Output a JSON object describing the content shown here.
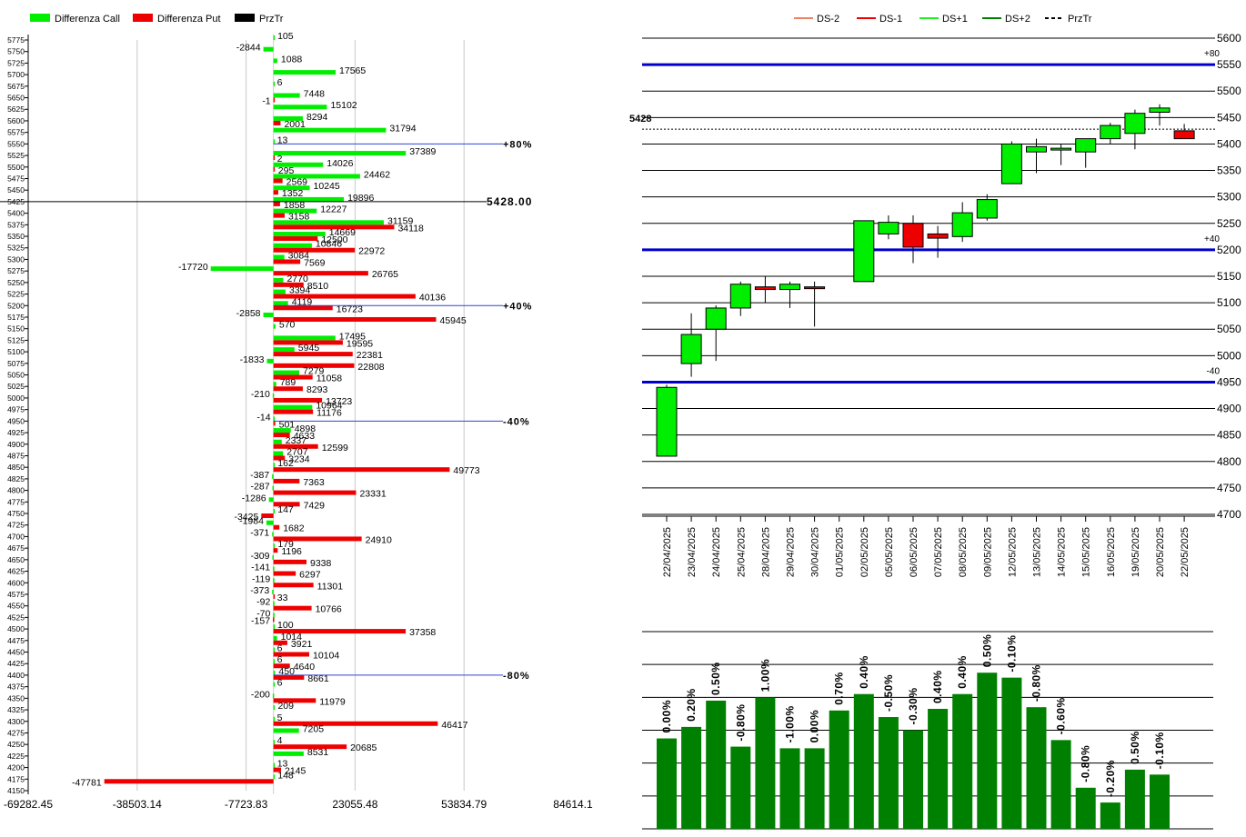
{
  "chart_data": [
    {
      "type": "bar",
      "orientation": "horizontal",
      "legend": [
        {
          "name": "Differenza Call",
          "color": "#00ee00"
        },
        {
          "name": "Differenza Put",
          "color": "#ee0000"
        },
        {
          "name": "PrzTr",
          "color": "#000000"
        }
      ],
      "xlim": [
        -69282.45,
        84614.1
      ],
      "xticks": [
        "-69282.45",
        "-38503.14",
        "-7723.83",
        "23055.48",
        "53834.79",
        "84614.1"
      ],
      "xtick_values": [
        -69282.45,
        -38503.14,
        -7723.83,
        23055.48,
        53834.79,
        84614.1
      ],
      "strikes": [
        5775,
        5750,
        5725,
        5700,
        5675,
        5650,
        5625,
        5600,
        5575,
        5550,
        5525,
        5500,
        5475,
        5450,
        5425,
        5400,
        5375,
        5350,
        5325,
        5300,
        5275,
        5250,
        5225,
        5200,
        5175,
        5150,
        5125,
        5100,
        5075,
        5050,
        5025,
        5000,
        4975,
        4950,
        4925,
        4900,
        4875,
        4850,
        4825,
        4800,
        4775,
        4750,
        4725,
        4700,
        4675,
        4650,
        4625,
        4600,
        4575,
        4550,
        4525,
        4500,
        4475,
        4450,
        4425,
        4400,
        4375,
        4350,
        4325,
        4300,
        4275,
        4250,
        4225,
        4200,
        4175,
        4150
      ],
      "call": [
        105,
        -2844,
        1088,
        17565,
        6,
        7448,
        15102,
        8294,
        31794,
        13,
        37389,
        14026,
        24462,
        10245,
        19896,
        12227,
        31159,
        14669,
        10846,
        3084,
        -17720,
        2770,
        3394,
        4119,
        -2858,
        570,
        17495,
        5945,
        -1833,
        7279,
        789,
        -210,
        10964,
        -14,
        4898,
        2337,
        2707,
        162,
        -387,
        -287,
        -1286,
        147,
        -1984,
        -371,
        179,
        -309,
        -141,
        -119,
        -373,
        -92,
        -70,
        100,
        1014,
        6,
        6,
        450,
        6,
        -200,
        209,
        5,
        7205,
        4,
        8531,
        13,
        148,
        0
      ],
      "put": [
        0,
        0,
        0,
        0,
        0,
        -1,
        0,
        2001,
        0,
        0,
        2,
        295,
        2569,
        1352,
        1858,
        3158,
        34118,
        12500,
        22972,
        7569,
        26765,
        8510,
        40136,
        16723,
        45945,
        0,
        19595,
        22381,
        22808,
        11058,
        8293,
        13723,
        11176,
        501,
        4633,
        12599,
        3234,
        49773,
        7363,
        23331,
        7429,
        -3425,
        1682,
        24910,
        1196,
        9338,
        6297,
        11301,
        33,
        10766,
        -157,
        37358,
        3921,
        10104,
        4640,
        8661,
        0,
        11979,
        0,
        46417,
        0,
        20685,
        0,
        2145,
        -47781,
        0
      ],
      "price_label": "5428.00",
      "price_strike": 5425,
      "markers": [
        {
          "label": "+80%",
          "strike": 5550
        },
        {
          "label": "+40%",
          "strike": 5200
        },
        {
          "label": "-40%",
          "strike": 4950
        },
        {
          "label": "-80%",
          "strike": 4400
        }
      ]
    },
    {
      "type": "candlestick",
      "legend": [
        {
          "name": "DS-2",
          "color": "#f08060"
        },
        {
          "name": "DS-1",
          "color": "#ee0000"
        },
        {
          "name": "DS+1",
          "color": "#22ee22"
        },
        {
          "name": "DS+2",
          "color": "#008000"
        },
        {
          "name": "PrzTr",
          "color": "#000000",
          "dashed": true
        }
      ],
      "ylim": [
        4700,
        5600
      ],
      "yticks": [
        4700,
        4750,
        4800,
        4850,
        4900,
        4950,
        5000,
        5050,
        5100,
        5150,
        5200,
        5250,
        5300,
        5350,
        5400,
        5450,
        5500,
        5550,
        5600
      ],
      "dates": [
        "22/04/2025",
        "23/04/2025",
        "24/04/2025",
        "25/04/2025",
        "28/04/2025",
        "29/04/2025",
        "30/04/2025",
        "01/05/2025",
        "02/05/2025",
        "05/05/2025",
        "06/05/2025",
        "07/05/2025",
        "08/05/2025",
        "09/05/2025",
        "12/05/2025",
        "13/05/2025",
        "14/05/2025",
        "15/05/2025",
        "16/05/2025",
        "19/05/2025",
        "20/05/2025",
        "22/05/2025"
      ],
      "ohlc": [
        [
          4810,
          4945,
          4810,
          4940
        ],
        [
          4985,
          5080,
          4960,
          5040
        ],
        [
          5050,
          5095,
          4990,
          5090
        ],
        [
          5090,
          5140,
          5075,
          5135
        ],
        [
          5130,
          5150,
          5100,
          5125
        ],
        [
          5125,
          5140,
          5090,
          5135
        ],
        [
          5130,
          5140,
          5055,
          5128
        ],
        null,
        [
          5140,
          5255,
          5140,
          5255
        ],
        [
          5230,
          5265,
          5220,
          5252
        ],
        [
          5250,
          5265,
          5175,
          5205
        ],
        [
          5230,
          5245,
          5185,
          5222
        ],
        [
          5225,
          5290,
          5215,
          5270
        ],
        [
          5260,
          5305,
          5255,
          5295
        ],
        [
          5325,
          5405,
          5325,
          5400
        ],
        [
          5385,
          5410,
          5345,
          5395
        ],
        [
          5390,
          5400,
          5360,
          5392
        ],
        [
          5385,
          5410,
          5355,
          5410
        ],
        [
          5410,
          5440,
          5400,
          5435
        ],
        [
          5420,
          5465,
          5390,
          5458
        ],
        [
          5460,
          5475,
          5435,
          5468
        ],
        [
          5425,
          5438,
          5410,
          5410
        ]
      ],
      "empty_dates": [
        "01/05/2025"
      ],
      "price_level": 5428,
      "price_label": "5428",
      "levels": [
        {
          "label": "+80",
          "value": 5550
        },
        {
          "label": "+40",
          "value": 5200
        },
        {
          "label": "-40",
          "value": 4950
        }
      ]
    },
    {
      "type": "bar",
      "ylim": [
        0,
        1.2
      ],
      "dates": [
        "22/04/2025",
        "23/04/2025",
        "24/04/2025",
        "25/04/2025",
        "28/04/2025",
        "29/04/2025",
        "30/04/2025",
        "01/05/2025",
        "02/05/2025",
        "05/05/2025",
        "06/05/2025",
        "07/05/2025",
        "08/05/2025",
        "09/05/2025",
        "12/05/2025",
        "13/05/2025",
        "14/05/2025",
        "15/05/2025",
        "16/05/2025",
        "19/05/2025",
        "20/05/2025",
        "22/05/2025"
      ],
      "values": [
        0.55,
        0.62,
        0.78,
        0.5,
        0.8,
        0.49,
        0.49,
        0.72,
        0.82,
        0.68,
        0.6,
        0.73,
        0.82,
        0.95,
        0.92,
        0.74,
        0.54,
        0.25,
        0.16,
        0.36,
        0.33,
        null
      ],
      "labels": [
        "0.00%",
        "0.20%",
        "0.50%",
        "-0.80%",
        "1.00%",
        "-1.00%",
        "0.00%",
        "0.70%",
        "0.40%",
        "-0.50%",
        "-0.30%",
        "0.40%",
        "0.40%",
        "0.50%",
        "-0.10%",
        "-0.80%",
        "-0.60%",
        "-0.80%",
        "-0.20%",
        "0.50%",
        "-0.10%",
        ""
      ],
      "color": "#008000"
    }
  ]
}
